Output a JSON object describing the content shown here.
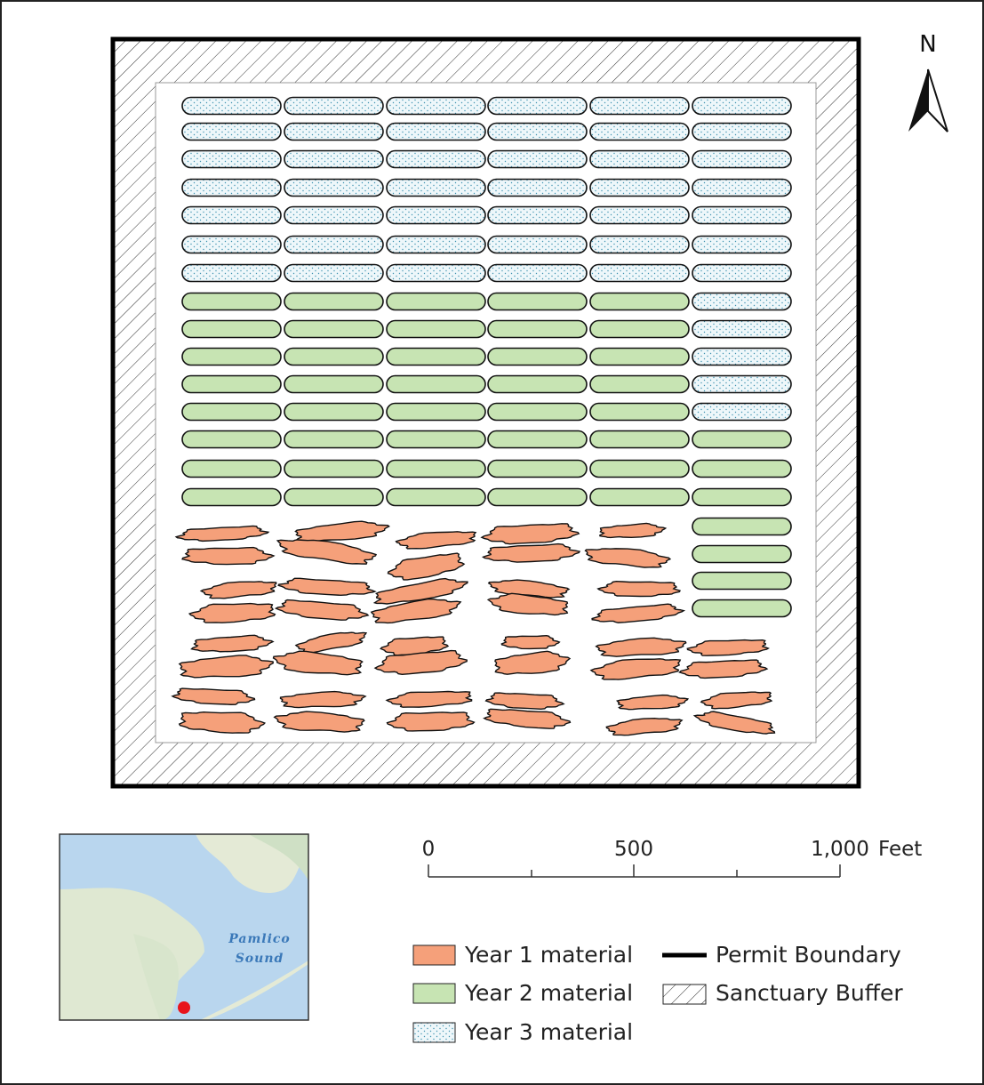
{
  "north_arrow": {
    "label": "N"
  },
  "scale_bar": {
    "ticks": [
      "0",
      "500",
      "1,000"
    ],
    "unit": "Feet"
  },
  "legend": {
    "items": [
      "Year 1 material",
      "Year 2 material",
      "Year 3 material",
      "Permit Boundary",
      "Sanctuary Buffer"
    ]
  },
  "inset_map": {
    "labels": [
      "Pamlico",
      "Sound"
    ]
  }
}
